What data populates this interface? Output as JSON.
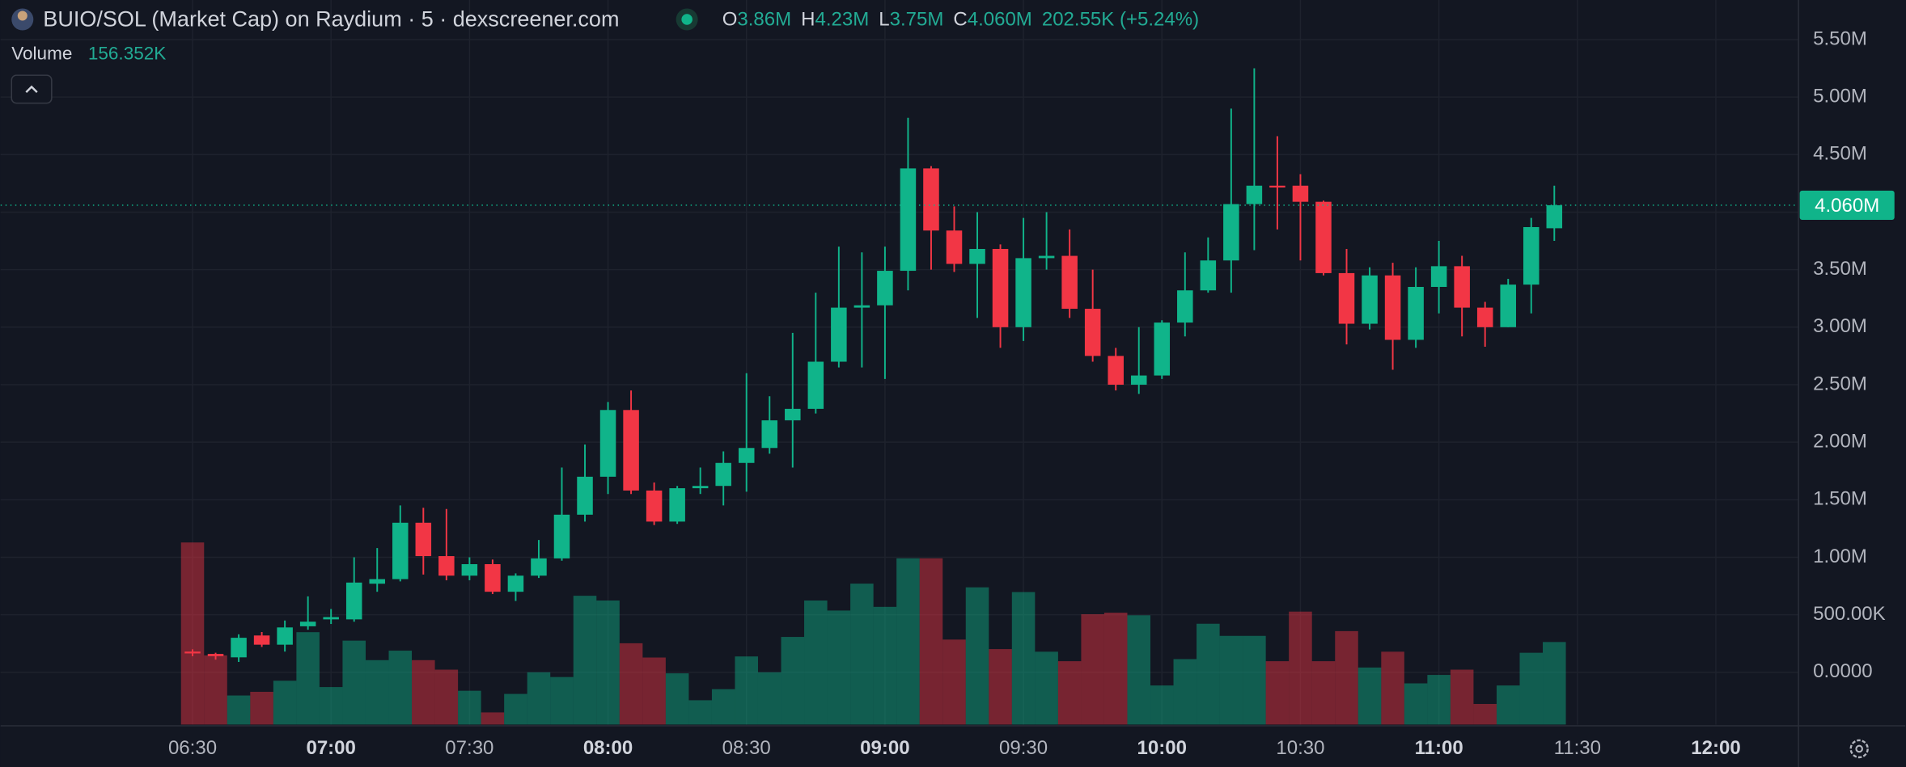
{
  "chart_data": {
    "type": "candlestick",
    "title": "BUIO/SOL (Market Cap) on Raydium · 5 · dexscreener.com",
    "legend": [
      {
        "key": "O",
        "label": "3.86M"
      },
      {
        "key": "H",
        "label": "4.23M"
      },
      {
        "key": "L",
        "label": "3.75M"
      },
      {
        "key": "C",
        "label": "4.060M"
      }
    ],
    "change": "202.55K (+5.24%)",
    "volume_title": "Volume",
    "volume_label": "156.352K",
    "up_color": "#10b48a",
    "down_color": "#f23645",
    "grid": true,
    "x": [
      0,
      1,
      2,
      3,
      4,
      5,
      6,
      7,
      8,
      9,
      10,
      11,
      12,
      13,
      14,
      15,
      16,
      17,
      18,
      19,
      20,
      21,
      22,
      23,
      24,
      25,
      26,
      27,
      28,
      29,
      30,
      31,
      32,
      33,
      34,
      35,
      36,
      37,
      38,
      39,
      40,
      41,
      42,
      43,
      44,
      45,
      46,
      47,
      48,
      49,
      50,
      51,
      52,
      53,
      54,
      55,
      56,
      57,
      58,
      59
    ],
    "open": [
      180000,
      160000,
      130000,
      320000,
      240000,
      400000,
      460000,
      460000,
      770000,
      810000,
      1300000,
      1010000,
      840000,
      940000,
      700000,
      840000,
      990000,
      1370000,
      1700000,
      2280000,
      1580000,
      1310000,
      1600000,
      1620000,
      1820000,
      1950000,
      2190000,
      2290000,
      2700000,
      3170000,
      3190000,
      3490000,
      4380000,
      3840000,
      3550000,
      3680000,
      3000000,
      3600000,
      3620000,
      3160000,
      2750000,
      2500000,
      2580000,
      3040000,
      3320000,
      3580000,
      4070000,
      4230000,
      4230000,
      4090000,
      3470000,
      3030000,
      3450000,
      2890000,
      3350000,
      3530000,
      3170000,
      3000000,
      3370000,
      3860000
    ],
    "high": [
      200000,
      170000,
      330000,
      350000,
      450000,
      660000,
      550000,
      1000000,
      1080000,
      1450000,
      1430000,
      1420000,
      1000000,
      980000,
      860000,
      1150000,
      1780000,
      1980000,
      2350000,
      2450000,
      1650000,
      1620000,
      1780000,
      1920000,
      2600000,
      2400000,
      2950000,
      3300000,
      3700000,
      3650000,
      3700000,
      4820000,
      4400000,
      4050000,
      4000000,
      3720000,
      3950000,
      4000000,
      3850000,
      3500000,
      2820000,
      3000000,
      3060000,
      3650000,
      3780000,
      4900000,
      5250000,
      4660000,
      4330000,
      4100000,
      3680000,
      3520000,
      3560000,
      3520000,
      3750000,
      3620000,
      3220000,
      3420000,
      3950000,
      4230000
    ],
    "low": [
      140000,
      110000,
      90000,
      220000,
      180000,
      370000,
      420000,
      440000,
      700000,
      790000,
      850000,
      800000,
      800000,
      680000,
      620000,
      820000,
      970000,
      1310000,
      1550000,
      1550000,
      1280000,
      1290000,
      1550000,
      1450000,
      1570000,
      1900000,
      1780000,
      2250000,
      2650000,
      2650000,
      2550000,
      3320000,
      3500000,
      3480000,
      3080000,
      2820000,
      2880000,
      3500000,
      3080000,
      2700000,
      2450000,
      2420000,
      2550000,
      2920000,
      3300000,
      3300000,
      3670000,
      3850000,
      3580000,
      3450000,
      2850000,
      2980000,
      2630000,
      2820000,
      3120000,
      2920000,
      2830000,
      3000000,
      3120000,
      3750000
    ],
    "close": [
      170000,
      140000,
      300000,
      240000,
      390000,
      440000,
      480000,
      780000,
      810000,
      1300000,
      1010000,
      840000,
      940000,
      700000,
      840000,
      990000,
      1370000,
      1700000,
      2280000,
      1580000,
      1310000,
      1600000,
      1620000,
      1820000,
      1950000,
      2190000,
      2290000,
      2700000,
      3170000,
      3190000,
      3490000,
      4380000,
      3840000,
      3550000,
      3680000,
      3000000,
      3600000,
      3620000,
      3160000,
      2750000,
      2500000,
      2580000,
      3040000,
      3320000,
      3580000,
      4070000,
      4230000,
      4220000,
      4090000,
      3470000,
      3030000,
      3450000,
      2890000,
      3350000,
      3530000,
      3170000,
      3000000,
      3370000,
      3870000,
      4060000
    ],
    "volume": [
      345000,
      131000,
      55000,
      62000,
      83000,
      175000,
      71000,
      159000,
      122000,
      140000,
      122000,
      104000,
      64000,
      23000,
      58000,
      99000,
      90000,
      244000,
      235000,
      154000,
      127000,
      97000,
      46000,
      67000,
      129000,
      99000,
      166000,
      235000,
      216000,
      267000,
      223000,
      315000,
      315000,
      161000,
      260000,
      143000,
      251000,
      138000,
      120000,
      209000,
      212000,
      207000,
      74000,
      124000,
      191000,
      168000,
      168000,
      120000,
      214000,
      120000,
      177000,
      108000,
      138000,
      78000,
      94000,
      104000,
      39000,
      74000,
      136000,
      156352
    ],
    "volume_lim": [
      0,
      1373000
    ],
    "xlim": [
      -8.3158,
      69.579
    ],
    "xticks": [
      {
        "value": 0,
        "label": "06:30"
      },
      {
        "value": 6,
        "label": "07:00"
      },
      {
        "value": 12,
        "label": "07:30"
      },
      {
        "value": 18,
        "label": "08:00"
      },
      {
        "value": 24,
        "label": "08:30"
      },
      {
        "value": 30,
        "label": "09:00"
      },
      {
        "value": 36,
        "label": "09:30"
      },
      {
        "value": 42,
        "label": "10:00"
      },
      {
        "value": 48,
        "label": "10:30"
      },
      {
        "value": 54,
        "label": "11:00"
      },
      {
        "value": 60,
        "label": "11:30"
      },
      {
        "value": 66,
        "label": "12:00"
      }
    ],
    "ylim": [
      -454000,
      5844000
    ],
    "yticks": [
      {
        "value": 0,
        "label": "0.0000"
      },
      {
        "value": 500000,
        "label": "500.00K"
      },
      {
        "value": 1000000,
        "label": "1.00M"
      },
      {
        "value": 1500000,
        "label": "1.50M"
      },
      {
        "value": 2000000,
        "label": "2.00M"
      },
      {
        "value": 2500000,
        "label": "2.50M"
      },
      {
        "value": 3000000,
        "label": "3.00M"
      },
      {
        "value": 3500000,
        "label": "3.50M"
      },
      {
        "value": 4000000,
        "label": "4.00M"
      },
      {
        "value": 4500000,
        "label": "4.50M"
      },
      {
        "value": 5000000,
        "label": "5.00M"
      },
      {
        "value": 5500000,
        "label": "5.50M"
      }
    ],
    "last_price": {
      "value": 4060000,
      "label": "4.060M"
    }
  }
}
